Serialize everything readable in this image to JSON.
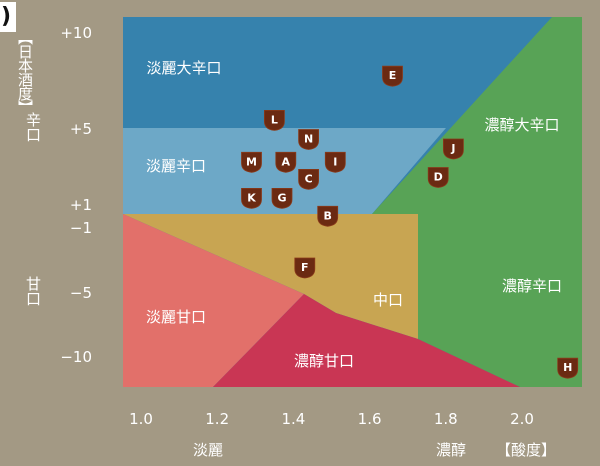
{
  "corner_mark": ")",
  "chart_data": {
    "type": "scatter",
    "x_unit_label": "【酸度】",
    "y_unit_label": "【日本酒度】",
    "x_end_labels": [
      "淡麗",
      "濃醇"
    ],
    "y_end_labels": [
      "辛口",
      "甘口"
    ],
    "x_ticks": [
      "1.0",
      "1.2",
      "1.4",
      "1.6",
      "1.8",
      "2.0"
    ],
    "y_ticks": [
      "+10",
      "+5",
      "+1",
      "−1",
      "−5",
      "−10"
    ],
    "grid": false,
    "regions": [
      {
        "label": "淡麗大辛口",
        "color": "#3682ad"
      },
      {
        "label": "淡麗辛口",
        "color": "#6da8c7"
      },
      {
        "label": "中口",
        "color": "#c8a552"
      },
      {
        "label": "濃醇大辛口",
        "color": "#58a356"
      },
      {
        "label": "濃醇辛口",
        "color": "#58a356"
      },
      {
        "label": "淡麗甘口",
        "color": "#e2706a"
      },
      {
        "label": "濃醇甘口",
        "color": "#c93654"
      }
    ],
    "points": [
      {
        "label": "A",
        "x": 1.38,
        "y": 3.3
      },
      {
        "label": "B",
        "x": 1.49,
        "y": 0.1
      },
      {
        "label": "C",
        "x": 1.44,
        "y": 2.4
      },
      {
        "label": "D",
        "x": 1.78,
        "y": 2.5
      },
      {
        "label": "E",
        "x": 1.66,
        "y": 7.8
      },
      {
        "label": "F",
        "x": 1.43,
        "y": -3.4
      },
      {
        "label": "G",
        "x": 1.37,
        "y": 1.4
      },
      {
        "label": "H",
        "x": 2.12,
        "y": -10.8
      },
      {
        "label": "I",
        "x": 1.51,
        "y": 3.3
      },
      {
        "label": "J",
        "x": 1.82,
        "y": 4.0
      },
      {
        "label": "K",
        "x": 1.29,
        "y": 1.4
      },
      {
        "label": "L",
        "x": 1.35,
        "y": 5.5
      },
      {
        "label": "M",
        "x": 1.29,
        "y": 3.3
      },
      {
        "label": "N",
        "x": 1.44,
        "y": 4.5
      }
    ]
  }
}
